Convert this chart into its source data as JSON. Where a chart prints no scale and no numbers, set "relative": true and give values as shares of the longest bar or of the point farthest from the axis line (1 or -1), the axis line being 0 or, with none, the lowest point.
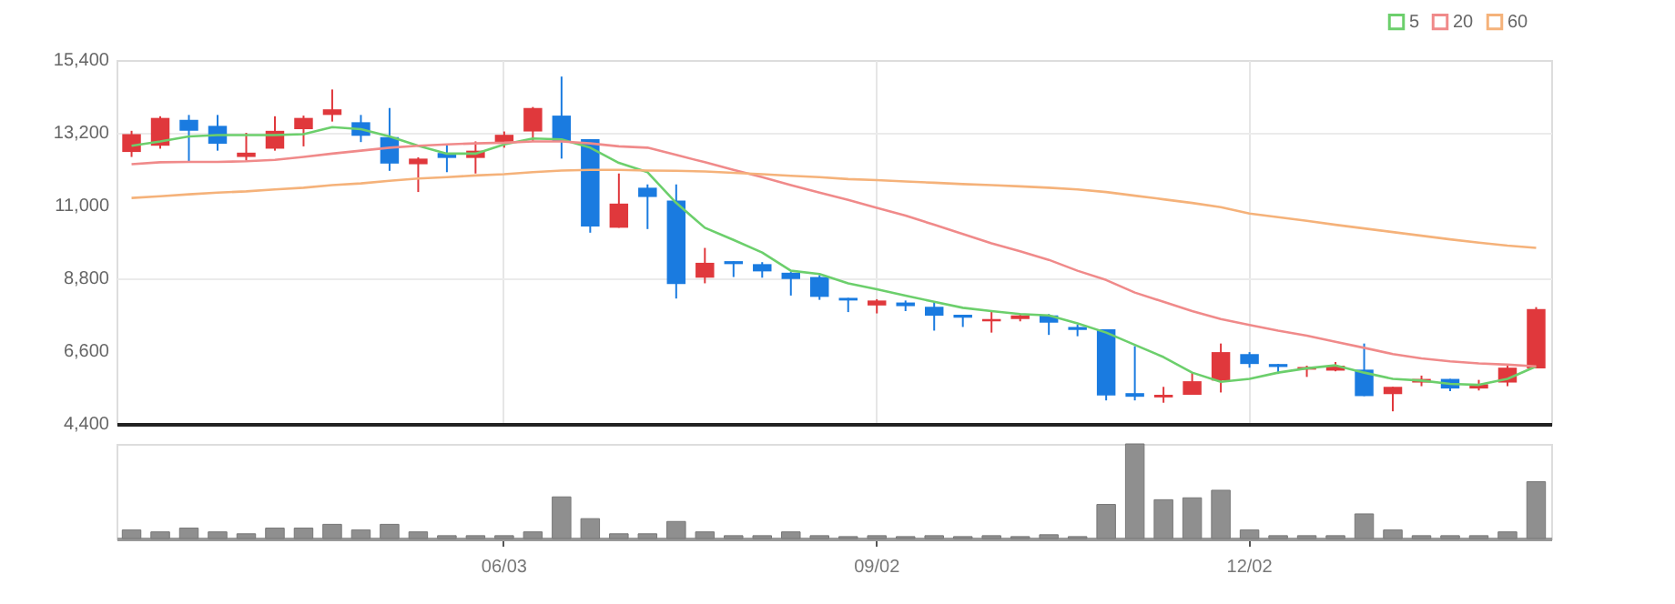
{
  "chart_data": [
    {
      "type": "candlestick",
      "categories": [
        null,
        null,
        null,
        null,
        null,
        null,
        null,
        null,
        null,
        null,
        null,
        null,
        null,
        null,
        null,
        null,
        null,
        null,
        null,
        null,
        null,
        null,
        null,
        null,
        null,
        null,
        null,
        null,
        null,
        null,
        null,
        null,
        null,
        null,
        null,
        null,
        null,
        null,
        null,
        null,
        null,
        null,
        null,
        null,
        null,
        null,
        null,
        null,
        null,
        null
      ],
      "ohlc": [
        [
          12620,
          13260,
          12470,
          13160
        ],
        [
          12810,
          13700,
          12720,
          13650
        ],
        [
          13590,
          13740,
          12340,
          13260
        ],
        [
          13410,
          13740,
          12660,
          12870
        ],
        [
          12470,
          13200,
          12360,
          12600
        ],
        [
          12720,
          13700,
          12660,
          13260
        ],
        [
          13310,
          13720,
          12790,
          13650
        ],
        [
          13740,
          14510,
          13540,
          13910
        ],
        [
          13520,
          13740,
          12920,
          13110
        ],
        [
          13070,
          13950,
          12050,
          12270
        ],
        [
          12250,
          12460,
          11410,
          12420
        ],
        [
          12590,
          12830,
          12010,
          12440
        ],
        [
          12440,
          12940,
          11970,
          12660
        ],
        [
          12920,
          13240,
          12750,
          13140
        ],
        [
          13240,
          13980,
          12940,
          13950
        ],
        [
          13720,
          14900,
          12420,
          12940
        ],
        [
          13010,
          13010,
          10180,
          10370
        ],
        [
          10330,
          11970,
          10330,
          11060
        ],
        [
          11540,
          11640,
          10290,
          11260
        ],
        [
          11150,
          11640,
          8190,
          8630
        ],
        [
          8820,
          9720,
          8650,
          9270
        ],
        [
          9320,
          9320,
          8840,
          9230
        ],
        [
          9230,
          9290,
          8820,
          9010
        ],
        [
          8970,
          8990,
          8280,
          8780
        ],
        [
          8840,
          8900,
          8150,
          8240
        ],
        [
          8210,
          8210,
          7780,
          8130
        ],
        [
          7980,
          8170,
          7740,
          8130
        ],
        [
          8070,
          8130,
          7810,
          7960
        ],
        [
          7940,
          8090,
          7220,
          7670
        ],
        [
          7700,
          7700,
          7330,
          7610
        ],
        [
          7500,
          7800,
          7160,
          7570
        ],
        [
          7570,
          7700,
          7500,
          7680
        ],
        [
          7680,
          7720,
          7090,
          7460
        ],
        [
          7330,
          7400,
          7050,
          7240
        ],
        [
          7260,
          7260,
          5110,
          5260
        ],
        [
          5330,
          6750,
          5110,
          5220
        ],
        [
          5200,
          5520,
          5040,
          5280
        ],
        [
          5280,
          5950,
          5280,
          5690
        ],
        [
          5710,
          6830,
          5350,
          6570
        ],
        [
          6510,
          6570,
          6100,
          6210
        ],
        [
          6210,
          6210,
          5910,
          6120
        ],
        [
          6040,
          6160,
          5820,
          6120
        ],
        [
          6010,
          6270,
          5990,
          6160
        ],
        [
          6040,
          6830,
          5240,
          5240
        ],
        [
          5300,
          5520,
          4780,
          5520
        ],
        [
          5650,
          5860,
          5540,
          5760
        ],
        [
          5760,
          5760,
          5390,
          5470
        ],
        [
          5470,
          5730,
          5410,
          5600
        ],
        [
          5650,
          6160,
          5540,
          6100
        ],
        [
          6080,
          7930,
          6080,
          7870
        ]
      ],
      "colors": [
        "#e0383c",
        "#e0383c",
        "#1a7be0",
        "#1a7be0",
        "#e0383c",
        "#e0383c",
        "#e0383c",
        "#e0383c",
        "#1a7be0",
        "#1a7be0",
        "#e0383c",
        "#1a7be0",
        "#e0383c",
        "#e0383c",
        "#e0383c",
        "#1a7be0",
        "#1a7be0",
        "#e0383c",
        "#1a7be0",
        "#1a7be0",
        "#e0383c",
        "#1a7be0",
        "#1a7be0",
        "#1a7be0",
        "#1a7be0",
        "#1a7be0",
        "#e0383c",
        "#1a7be0",
        "#1a7be0",
        "#1a7be0",
        "#e0383c",
        "#e0383c",
        "#1a7be0",
        "#1a7be0",
        "#1a7be0",
        "#1a7be0",
        "#e0383c",
        "#e0383c",
        "#e0383c",
        "#1a7be0",
        "#1a7be0",
        "#e0383c",
        "#e0383c",
        "#1a7be0",
        "#e0383c",
        "#e0383c",
        "#1a7be0",
        "#e0383c",
        "#e0383c",
        "#e0383c"
      ],
      "series": [
        {
          "type": "line",
          "name": "5",
          "color": "#6ccf6c",
          "values": [
            12810,
            12940,
            13090,
            13130,
            13130,
            13130,
            13160,
            13370,
            13310,
            13090,
            12810,
            12570,
            12570,
            12850,
            13030,
            13000,
            12750,
            12290,
            12010,
            11080,
            10330,
            9960,
            9580,
            9030,
            8930,
            8650,
            8470,
            8280,
            8090,
            7910,
            7810,
            7720,
            7680,
            7440,
            7160,
            6790,
            6420,
            5950,
            5670,
            5760,
            5950,
            6080,
            6170,
            5950,
            5760,
            5710,
            5610,
            5580,
            5760,
            6140
          ]
        },
        {
          "type": "line",
          "name": "20",
          "color": "#f08a8a",
          "values": [
            12250,
            12310,
            12320,
            12320,
            12340,
            12380,
            12470,
            12570,
            12660,
            12750,
            12810,
            12850,
            12880,
            12900,
            12940,
            12940,
            12880,
            12790,
            12750,
            12530,
            12310,
            12080,
            11860,
            11620,
            11390,
            11170,
            10930,
            10700,
            10420,
            10140,
            9860,
            9620,
            9360,
            9030,
            8750,
            8370,
            8090,
            7810,
            7570,
            7390,
            7220,
            7070,
            6880,
            6700,
            6510,
            6380,
            6290,
            6230,
            6190,
            6140
          ]
        },
        {
          "type": "line",
          "name": "60",
          "color": "#f5b27a",
          "values": [
            11230,
            11280,
            11340,
            11390,
            11430,
            11490,
            11540,
            11620,
            11670,
            11750,
            11820,
            11860,
            11910,
            11950,
            12010,
            12060,
            12080,
            12080,
            12060,
            12050,
            12030,
            11990,
            11950,
            11900,
            11860,
            11800,
            11770,
            11730,
            11690,
            11650,
            11620,
            11580,
            11540,
            11490,
            11410,
            11300,
            11190,
            11080,
            10950,
            10760,
            10650,
            10540,
            10420,
            10310,
            10200,
            10090,
            9980,
            9880,
            9790,
            9720
          ]
        }
      ],
      "ylim": [
        4400,
        15400
      ],
      "yticks": [
        {
          "value": 4400,
          "label": "4,400"
        },
        {
          "value": 6600,
          "label": "6,600"
        },
        {
          "value": 8800,
          "label": "8,800"
        },
        {
          "value": 11000,
          "label": "11,000"
        },
        {
          "value": 13200,
          "label": "13,200"
        },
        {
          "value": 15400,
          "label": "15,400"
        }
      ],
      "grid": true,
      "legend": "top right",
      "marker": "none",
      "tick_labels": "y"
    },
    {
      "type": "bar",
      "relative": true,
      "color": "#8f8f8f",
      "tick_labels": "x",
      "categories": [
        null,
        null,
        null,
        null,
        null,
        null,
        null,
        null,
        null,
        null,
        null,
        null,
        null,
        "06/03",
        null,
        null,
        null,
        null,
        null,
        null,
        null,
        null,
        null,
        null,
        null,
        null,
        "09/02",
        null,
        null,
        null,
        null,
        null,
        null,
        null,
        null,
        null,
        null,
        null,
        null,
        "12/02",
        null,
        null,
        null,
        null,
        null,
        null,
        null,
        null,
        null,
        null
      ],
      "values": [
        0.09,
        0.07,
        0.11,
        0.07,
        0.05,
        0.11,
        0.11,
        0.15,
        0.09,
        0.15,
        0.07,
        0.03,
        0.03,
        0.03,
        0.07,
        0.44,
        0.21,
        0.05,
        0.05,
        0.18,
        0.07,
        0.03,
        0.03,
        0.07,
        0.03,
        0.02,
        0.03,
        0.02,
        0.03,
        0.02,
        0.03,
        0.02,
        0.04,
        0.02,
        0.36,
        1,
        0.41,
        0.43,
        0.51,
        0.09,
        0.03,
        0.03,
        0.03,
        0.26,
        0.09,
        0.03,
        0.03,
        0.03,
        0.07,
        0.6
      ]
    }
  ]
}
